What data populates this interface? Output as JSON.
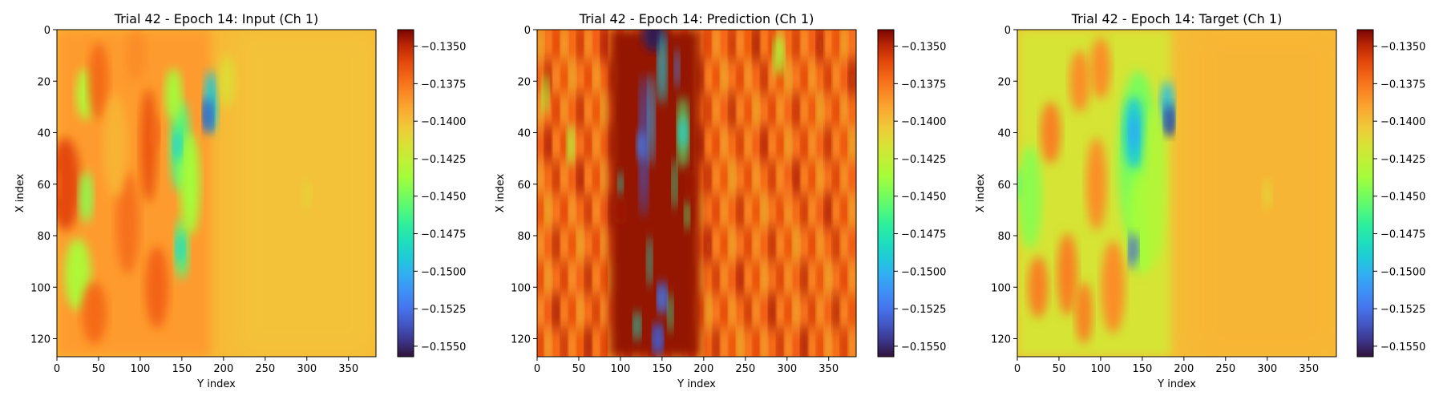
{
  "chart_data": [
    {
      "type": "heatmap",
      "title": "Trial 42 - Epoch 14: Input (Ch 1)",
      "xlabel": "Y index",
      "ylabel": "X index",
      "xlim": [
        0,
        383
      ],
      "ylim": [
        127,
        0
      ],
      "xticks": [
        0,
        50,
        100,
        150,
        200,
        250,
        300,
        350
      ],
      "yticks": [
        0,
        20,
        40,
        60,
        80,
        100,
        120
      ],
      "colorbar": {
        "colormap": "turbo",
        "vmin": -0.1557,
        "vmax": -0.1339,
        "ticks": [
          "−0.1350",
          "−0.1375",
          "−0.1400",
          "−0.1425",
          "−0.1450",
          "−0.1475",
          "−0.1500",
          "−0.1525",
          "−0.1550"
        ]
      },
      "features": [
        {
          "x": 182,
          "y": 33,
          "value": -0.1535
        },
        {
          "x": 145,
          "y": 45,
          "value": -0.149
        },
        {
          "x": 148,
          "y": 85,
          "value": -0.1485
        },
        {
          "x": 0,
          "y": 60,
          "value": -0.137
        },
        {
          "x": 118,
          "y": 40,
          "value": -0.137
        },
        {
          "x": 300,
          "y": 64,
          "value": -0.141
        }
      ]
    },
    {
      "type": "heatmap",
      "title": "Trial 42 - Epoch 14: Prediction (Ch 1)",
      "xlabel": "Y index",
      "ylabel": "X index",
      "xlim": [
        0,
        383
      ],
      "ylim": [
        127,
        0
      ],
      "xticks": [
        0,
        50,
        100,
        150,
        200,
        250,
        300,
        350
      ],
      "yticks": [
        0,
        20,
        40,
        60,
        80,
        100,
        120
      ],
      "colorbar": {
        "colormap": "turbo",
        "vmin": -0.1557,
        "vmax": -0.1339,
        "ticks": [
          "−0.1350",
          "−0.1375",
          "−0.1400",
          "−0.1425",
          "−0.1450",
          "−0.1475",
          "−0.1500",
          "−0.1525",
          "−0.1550"
        ]
      },
      "features": [
        {
          "x": 140,
          "y": 2,
          "value": -0.1555
        },
        {
          "x": 125,
          "y": 45,
          "value": -0.152
        },
        {
          "x": 150,
          "y": 105,
          "value": -0.152
        },
        {
          "x": 145,
          "y": 120,
          "value": -0.153
        },
        {
          "x": 175,
          "y": 40,
          "value": -0.149
        },
        {
          "x": 100,
          "y": 70,
          "value": -0.1345
        },
        {
          "x": 185,
          "y": 60,
          "value": -0.1345
        },
        {
          "x": 300,
          "y": 64,
          "value": -0.1375
        }
      ]
    },
    {
      "type": "heatmap",
      "title": "Trial 42 - Epoch 14: Target (Ch 1)",
      "xlabel": "Y index",
      "ylabel": "X index",
      "xlim": [
        0,
        383
      ],
      "ylim": [
        127,
        0
      ],
      "xticks": [
        0,
        50,
        100,
        150,
        200,
        250,
        300,
        350
      ],
      "yticks": [
        0,
        20,
        40,
        60,
        80,
        100,
        120
      ],
      "colorbar": {
        "colormap": "turbo",
        "vmin": -0.1557,
        "vmax": -0.1339,
        "ticks": [
          "−0.1350",
          "−0.1375",
          "−0.1400",
          "−0.1425",
          "−0.1450",
          "−0.1475",
          "−0.1500",
          "−0.1525",
          "−0.1550"
        ]
      },
      "features": [
        {
          "x": 182,
          "y": 35,
          "value": -0.1545
        },
        {
          "x": 140,
          "y": 40,
          "value": -0.1505
        },
        {
          "x": 140,
          "y": 85,
          "value": -0.153
        },
        {
          "x": 0,
          "y": 60,
          "value": -0.1455
        },
        {
          "x": 300,
          "y": 64,
          "value": -0.141
        }
      ]
    }
  ]
}
